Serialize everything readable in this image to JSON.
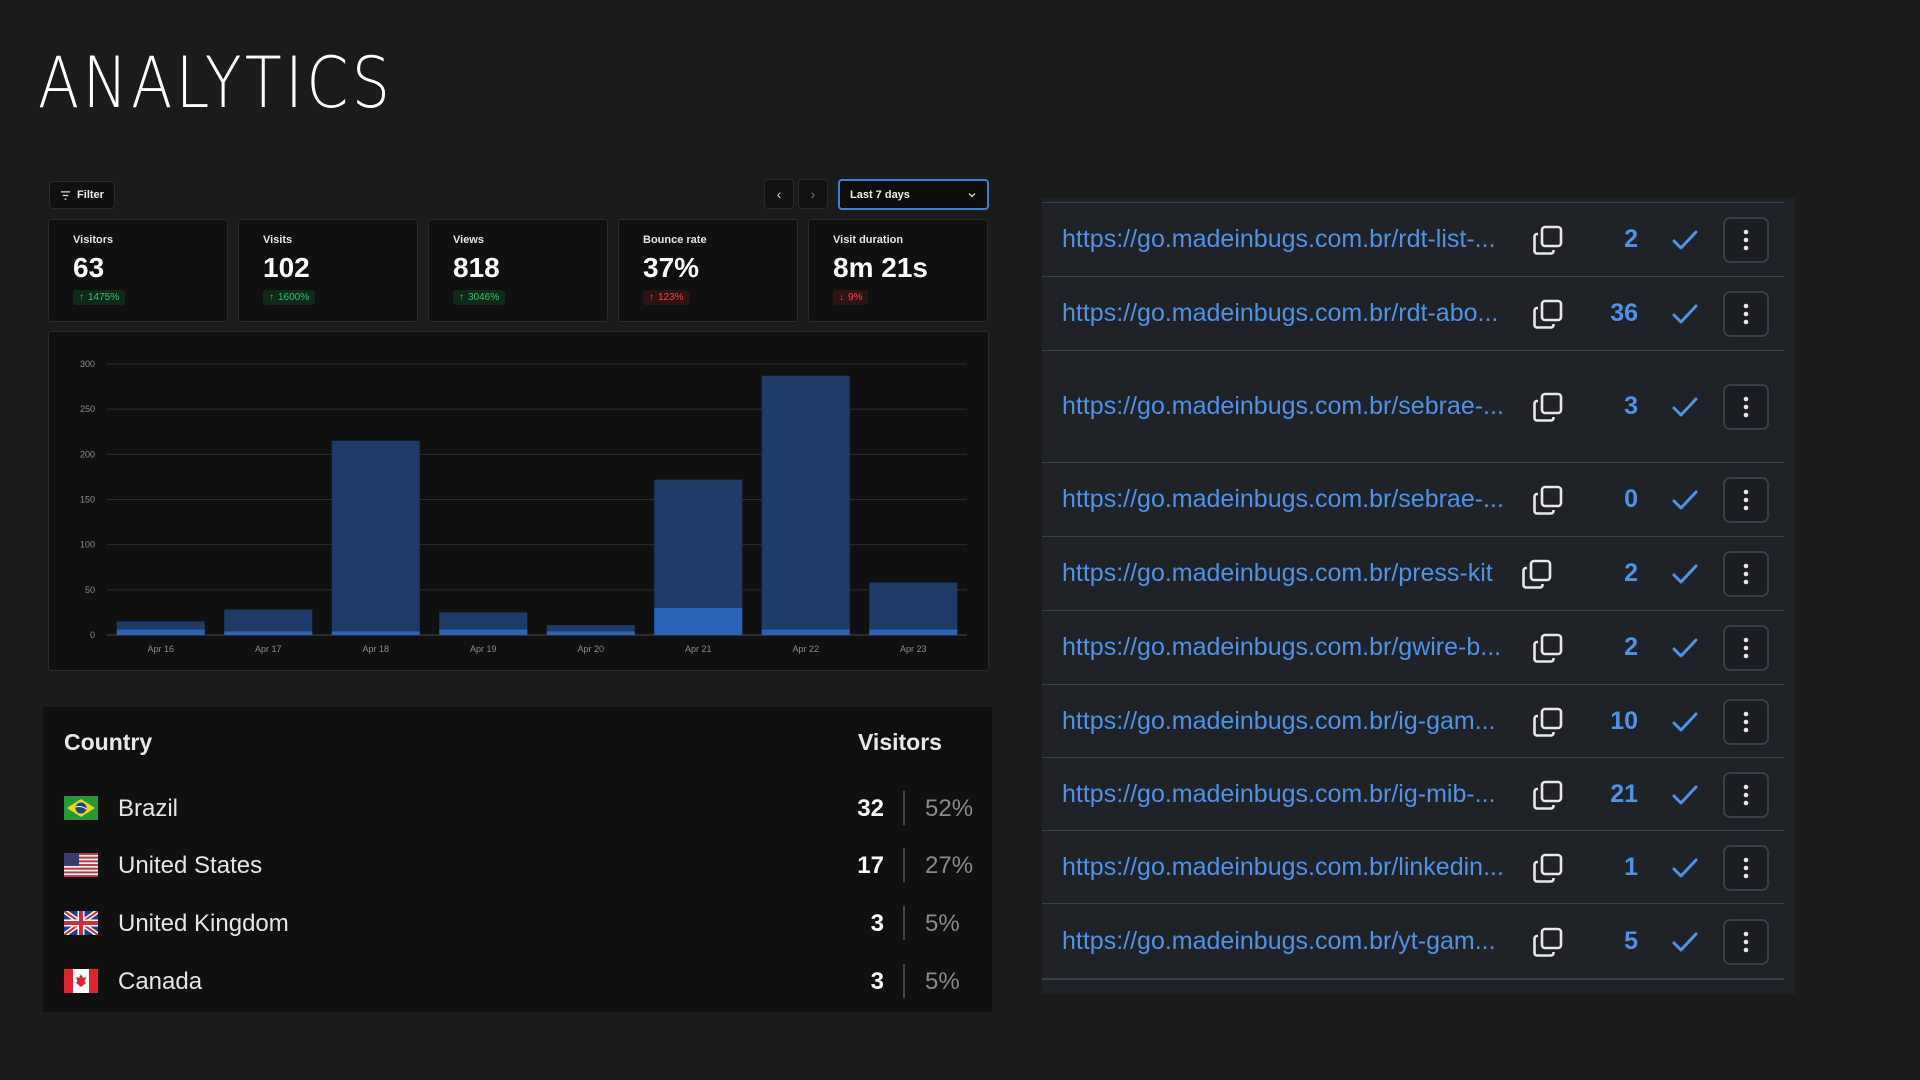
{
  "page": {
    "title": "ANALYTICS"
  },
  "toolbar": {
    "filter_label": "Filter",
    "prev_icon": "chevron-left-icon",
    "next_icon": "chevron-right-icon",
    "date_range": "Last 7 days"
  },
  "stats": [
    {
      "label": "Visitors",
      "value": "63",
      "change": "1475%",
      "direction": "up"
    },
    {
      "label": "Visits",
      "value": "102",
      "change": "1600%",
      "direction": "up"
    },
    {
      "label": "Views",
      "value": "818",
      "change": "3046%",
      "direction": "up"
    },
    {
      "label": "Bounce rate",
      "value": "37%",
      "change": "123%",
      "direction": "up-bad"
    },
    {
      "label": "Visit duration",
      "value": "8m 21s",
      "change": "9%",
      "direction": "down"
    }
  ],
  "chart_data": {
    "type": "bar",
    "categories": [
      "Apr 16",
      "Apr 17",
      "Apr 18",
      "Apr 19",
      "Apr 20",
      "Apr 21",
      "Apr 22",
      "Apr 23"
    ],
    "series": [
      {
        "values": [
          15,
          28,
          215,
          25,
          11,
          172,
          287,
          58
        ],
        "color": "#1e3a66"
      },
      {
        "values": [
          6,
          4,
          4,
          6,
          4,
          30,
          6,
          6
        ],
        "color": "#2a63b8"
      }
    ],
    "yticks": [
      0,
      50,
      100,
      150,
      200,
      250,
      300
    ],
    "ylim": [
      0,
      300
    ],
    "grid": true
  },
  "countries": {
    "header_country": "Country",
    "header_visitors": "Visitors",
    "rows": [
      {
        "name": "Brazil",
        "count": "32",
        "pct": "52%",
        "flag": "brazil-flag-icon"
      },
      {
        "name": "United States",
        "count": "17",
        "pct": "27%",
        "flag": "us-flag-icon"
      },
      {
        "name": "United Kingdom",
        "count": "3",
        "pct": "5%",
        "flag": "uk-flag-icon"
      },
      {
        "name": "Canada",
        "count": "3",
        "pct": "5%",
        "flag": "canada-flag-icon"
      }
    ]
  },
  "links": [
    {
      "url": "https://go.madeinbugs.com.br/rdt-list-...",
      "count": "2"
    },
    {
      "url": "https://go.madeinbugs.com.br/rdt-abo...",
      "count": "36"
    },
    {
      "url": "https://go.madeinbugs.com.br/sebrae-...",
      "count": "3"
    },
    {
      "url": "https://go.madeinbugs.com.br/sebrae-...",
      "count": "0"
    },
    {
      "url": "https://go.madeinbugs.com.br/press-kit",
      "count": "2"
    },
    {
      "url": "https://go.madeinbugs.com.br/gwire-b...",
      "count": "2"
    },
    {
      "url": "https://go.madeinbugs.com.br/ig-gam...",
      "count": "10"
    },
    {
      "url": "https://go.madeinbugs.com.br/ig-mib-...",
      "count": "21"
    },
    {
      "url": "https://go.madeinbugs.com.br/linkedin...",
      "count": "1"
    },
    {
      "url": "https://go.madeinbugs.com.br/yt-gam...",
      "count": "5"
    }
  ]
}
